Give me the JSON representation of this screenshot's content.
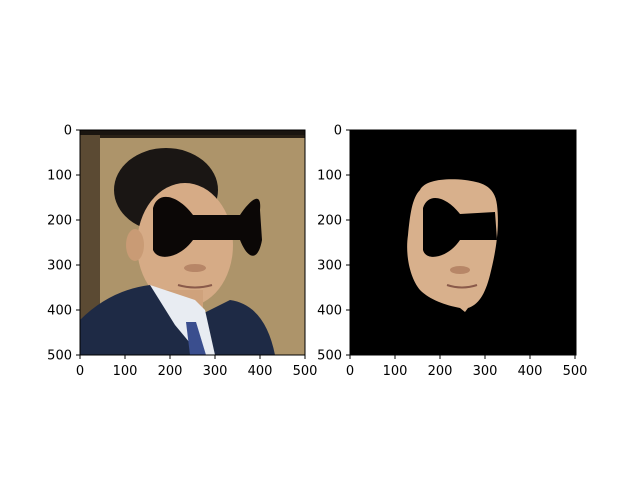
{
  "figure": {
    "panels": [
      {
        "name": "original-face-image",
        "x_ticks": [
          "0",
          "100",
          "200",
          "300",
          "400",
          "500"
        ],
        "y_ticks": [
          "0",
          "100",
          "200",
          "300",
          "400",
          "500"
        ]
      },
      {
        "name": "segmented-face-image",
        "x_ticks": [
          "0",
          "100",
          "200",
          "300",
          "400",
          "500"
        ],
        "y_ticks": [
          "0",
          "100",
          "200",
          "300",
          "400",
          "500"
        ]
      }
    ]
  },
  "colors": {
    "background_panel2": "#000000",
    "mask": "#0b0706",
    "wall": "#b29a6e",
    "suit": "#1e2a45",
    "skin": "#d8b08c",
    "hair": "#1a1614"
  }
}
